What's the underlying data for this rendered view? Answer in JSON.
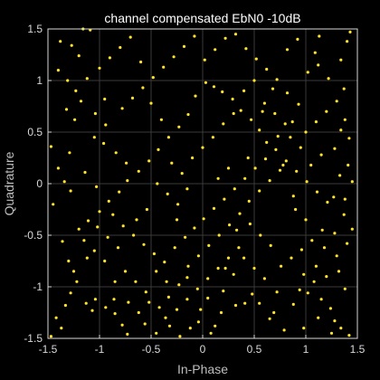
{
  "chart_data": {
    "type": "scatter",
    "title": "channel compensated EbN0 -10dB",
    "xlabel": "In-Phase",
    "ylabel": "Quadrature",
    "xlim": [
      -1.5,
      1.5
    ],
    "ylim": [
      -1.5,
      1.5
    ],
    "xticks": [
      "-1.5",
      "-1",
      "-0.5",
      "0",
      "0.5",
      "1",
      "1.5"
    ],
    "yticks": [
      "-1.5",
      "-1",
      "-0.5",
      "0",
      "0.5",
      "1",
      "1.5"
    ],
    "grid": true,
    "series": [
      {
        "marker": "dot",
        "points": [
          [
            -1.47,
            0.36
          ],
          [
            -1.34,
            0.02
          ],
          [
            -1.28,
            -0.07
          ],
          [
            -1.38,
            1.38
          ],
          [
            -1.27,
            1.34
          ],
          [
            -1.16,
            1.5
          ],
          [
            -1.09,
            1.49
          ],
          [
            -1.2,
            1.24
          ],
          [
            -1.23,
            0.9
          ],
          [
            -0.95,
            0.82
          ],
          [
            -1.24,
            0.62
          ],
          [
            -1.29,
            0.3
          ],
          [
            -1.36,
            -0.56
          ],
          [
            -1.3,
            -0.75
          ],
          [
            -1.28,
            -1.06
          ],
          [
            -1.37,
            -1.4
          ],
          [
            -1.13,
            -1.16
          ],
          [
            -1.07,
            -1.23
          ],
          [
            -1.04,
            -1.12
          ],
          [
            -0.94,
            -1.2
          ],
          [
            -0.86,
            -1.12
          ],
          [
            -0.85,
            -1.26
          ],
          [
            -0.78,
            -1.37
          ],
          [
            -0.73,
            -1.46
          ],
          [
            -0.56,
            -1.36
          ],
          [
            -0.45,
            -1.45
          ],
          [
            -0.36,
            -1.3
          ],
          [
            -0.33,
            -1.1
          ],
          [
            -0.23,
            -0.98
          ],
          [
            -0.15,
            -0.91
          ],
          [
            -0.04,
            -1.34
          ],
          [
            0.05,
            -1.11
          ],
          [
            0.12,
            -1.38
          ],
          [
            0.2,
            -1.04
          ],
          [
            0.22,
            -0.82
          ],
          [
            0.32,
            -1.18
          ],
          [
            0.41,
            -1.16
          ],
          [
            0.48,
            -1.07
          ],
          [
            0.55,
            -1.16
          ],
          [
            0.65,
            -1.31
          ],
          [
            0.69,
            -1.25
          ],
          [
            0.79,
            -1.42
          ],
          [
            0.88,
            -1.17
          ],
          [
            0.94,
            -1.03
          ],
          [
            1.02,
            -1.06
          ],
          [
            1.15,
            -1.12
          ],
          [
            1.24,
            -1.21
          ],
          [
            1.28,
            -1.33
          ],
          [
            1.34,
            -1.4
          ],
          [
            1.42,
            -1.47
          ],
          [
            1.38,
            -1.02
          ],
          [
            1.32,
            -0.85
          ],
          [
            1.4,
            -0.58
          ],
          [
            1.45,
            -0.44
          ],
          [
            1.37,
            -0.3
          ],
          [
            1.27,
            -0.13
          ],
          [
            1.33,
            0.08
          ],
          [
            1.41,
            0.18
          ],
          [
            1.28,
            0.34
          ],
          [
            1.34,
            0.52
          ],
          [
            1.42,
            0.44
          ],
          [
            1.37,
            0.92
          ],
          [
            1.34,
            1.2
          ],
          [
            1.4,
            1.38
          ],
          [
            1.43,
            1.47
          ],
          [
            1.13,
            1.43
          ],
          [
            1.09,
            1.27
          ],
          [
            1.02,
            1.08
          ],
          [
            0.93,
            0.77
          ],
          [
            0.82,
            0.88
          ],
          [
            0.87,
            0.6
          ],
          [
            0.73,
            0.46
          ],
          [
            0.62,
            0.4
          ],
          [
            0.55,
            0.52
          ],
          [
            0.47,
            0.62
          ],
          [
            0.37,
            0.71
          ],
          [
            0.29,
            0.82
          ],
          [
            0.19,
            0.89
          ],
          [
            0.11,
            0.94
          ],
          [
            0.03,
            0.98
          ],
          [
            -0.07,
            0.85
          ],
          [
            -0.14,
            0.67
          ],
          [
            -0.23,
            0.55
          ],
          [
            -0.33,
            0.45
          ],
          [
            -0.43,
            0.33
          ],
          [
            -0.52,
            0.22
          ],
          [
            -0.62,
            0.12
          ],
          [
            -0.73,
            0.03
          ],
          [
            -0.81,
            -0.08
          ],
          [
            -0.91,
            -0.17
          ],
          [
            -1.0,
            -0.27
          ],
          [
            -1.11,
            -0.36
          ],
          [
            -1.2,
            -0.44
          ],
          [
            -1.05,
            0.45
          ],
          [
            -0.96,
            0.39
          ],
          [
            -1.14,
            0.11
          ],
          [
            -1.03,
            -0.03
          ],
          [
            -0.87,
            -0.3
          ],
          [
            -0.77,
            -0.41
          ],
          [
            -0.67,
            -0.5
          ],
          [
            -0.57,
            -0.59
          ],
          [
            -0.47,
            -0.68
          ],
          [
            -0.37,
            -0.76
          ],
          [
            -0.27,
            -0.62
          ],
          [
            -0.17,
            -0.52
          ],
          [
            -0.08,
            -0.43
          ],
          [
            0.01,
            -0.34
          ],
          [
            0.11,
            -0.24
          ],
          [
            0.21,
            -0.15
          ],
          [
            0.31,
            -0.05
          ],
          [
            0.41,
            0.05
          ],
          [
            0.51,
            0.15
          ],
          [
            0.61,
            0.24
          ],
          [
            0.71,
            0.33
          ],
          [
            0.81,
            0.22
          ],
          [
            0.91,
            0.12
          ],
          [
            1.01,
            0.02
          ],
          [
            1.11,
            -0.08
          ],
          [
            1.21,
            -0.18
          ],
          [
            1.16,
            -0.45
          ],
          [
            1.06,
            -0.55
          ],
          [
            0.96,
            -0.64
          ],
          [
            0.86,
            -0.72
          ],
          [
            0.76,
            -0.8
          ],
          [
            0.66,
            -0.6
          ],
          [
            0.56,
            -0.5
          ],
          [
            0.46,
            -0.39
          ],
          [
            0.36,
            -0.29
          ],
          [
            0.26,
            -0.4
          ],
          [
            0.16,
            -0.5
          ],
          [
            0.06,
            -0.6
          ],
          [
            -0.04,
            -0.7
          ],
          [
            -0.14,
            -0.8
          ],
          [
            -0.24,
            -0.2
          ],
          [
            -0.34,
            -0.1
          ],
          [
            -0.44,
            0.0
          ],
          [
            -0.54,
            -0.25
          ],
          [
            -0.64,
            -0.35
          ],
          [
            -0.74,
            0.2
          ],
          [
            -0.84,
            0.3
          ],
          [
            -0.94,
            0.57
          ],
          [
            -1.04,
            0.68
          ],
          [
            -0.78,
            0.73
          ],
          [
            -0.68,
            0.83
          ],
          [
            -0.58,
            0.93
          ],
          [
            -0.48,
            1.03
          ],
          [
            -0.38,
            1.13
          ],
          [
            -0.28,
            1.23
          ],
          [
            -0.18,
            1.33
          ],
          [
            -0.08,
            1.43
          ],
          [
            0.02,
            1.2
          ],
          [
            0.12,
            1.3
          ],
          [
            0.22,
            1.41
          ],
          [
            0.32,
            1.45
          ],
          [
            0.42,
            1.31
          ],
          [
            0.52,
            1.21
          ],
          [
            0.62,
            1.11
          ],
          [
            0.72,
            1.01
          ],
          [
            0.82,
            1.3
          ],
          [
            0.92,
            1.4
          ],
          [
            1.0,
            0.5
          ],
          [
            1.1,
            0.6
          ],
          [
            1.2,
            0.7
          ],
          [
            1.15,
            0.28
          ],
          [
            1.05,
            0.18
          ],
          [
            0.95,
            0.35
          ],
          [
            0.85,
            0.45
          ],
          [
            0.75,
            0.13
          ],
          [
            0.65,
            0.03
          ],
          [
            0.55,
            -0.07
          ],
          [
            0.45,
            -0.17
          ],
          [
            0.35,
            -0.62
          ],
          [
            0.25,
            -0.72
          ],
          [
            0.15,
            -0.82
          ],
          [
            0.05,
            -0.92
          ],
          [
            -0.05,
            -1.02
          ],
          [
            -0.15,
            -1.12
          ],
          [
            -0.25,
            -1.22
          ],
          [
            -0.35,
            -0.95
          ],
          [
            -0.45,
            -0.85
          ],
          [
            -0.55,
            -1.05
          ],
          [
            -0.65,
            -0.95
          ],
          [
            -0.75,
            -0.85
          ],
          [
            -0.85,
            -0.95
          ],
          [
            -0.95,
            -0.75
          ],
          [
            -1.05,
            -0.65
          ],
          [
            -1.15,
            -0.55
          ],
          [
            -1.25,
            -0.85
          ],
          [
            -1.45,
            -0.2
          ],
          [
            -1.4,
            0.15
          ],
          [
            -1.32,
            0.72
          ],
          [
            -1.18,
            0.8
          ],
          [
            -1.12,
            1.02
          ],
          [
            -1.0,
            1.12
          ],
          [
            -0.9,
            1.22
          ],
          [
            -0.8,
            1.32
          ],
          [
            -0.7,
            1.42
          ],
          [
            -0.6,
            1.18
          ],
          [
            -0.5,
            0.78
          ],
          [
            -0.4,
            0.62
          ],
          [
            -0.3,
            0.2
          ],
          [
            -0.2,
            0.1
          ],
          [
            -0.1,
            0.25
          ],
          [
            0.0,
            0.35
          ],
          [
            0.1,
            0.45
          ],
          [
            0.2,
            0.58
          ],
          [
            0.3,
            0.68
          ],
          [
            0.4,
            0.9
          ],
          [
            0.5,
            1.0
          ],
          [
            0.6,
            0.78
          ],
          [
            0.7,
            0.68
          ],
          [
            0.8,
            0.58
          ],
          [
            0.9,
            -0.25
          ],
          [
            1.0,
            -0.35
          ],
          [
            1.1,
            -0.8
          ],
          [
            1.2,
            -0.9
          ],
          [
            1.3,
            -0.7
          ],
          [
            1.25,
            -1.45
          ],
          [
            1.12,
            -1.3
          ],
          [
            0.98,
            -1.4
          ],
          [
            0.72,
            -1.05
          ],
          [
            0.6,
            -0.92
          ],
          [
            0.5,
            -0.82
          ],
          [
            0.4,
            -0.72
          ],
          [
            0.3,
            -0.88
          ],
          [
            0.18,
            -1.25
          ],
          [
            0.08,
            -1.45
          ],
          [
            -0.02,
            -1.22
          ],
          [
            -0.12,
            -1.4
          ],
          [
            -0.22,
            -1.48
          ],
          [
            -0.32,
            -1.38
          ],
          [
            -0.42,
            -1.2
          ],
          [
            -0.52,
            -1.15
          ],
          [
            -0.62,
            -1.25
          ],
          [
            -0.72,
            -1.15
          ],
          [
            -0.82,
            -0.62
          ],
          [
            -0.92,
            -0.52
          ],
          [
            -1.02,
            -0.42
          ],
          [
            -1.12,
            -0.72
          ],
          [
            -1.22,
            -0.95
          ],
          [
            -1.33,
            -1.18
          ],
          [
            -1.42,
            -1.3
          ],
          [
            -1.47,
            -1.48
          ],
          [
            -1.4,
            1.1
          ],
          [
            -1.31,
            1.0
          ],
          [
            0.15,
            0.05
          ],
          [
            0.25,
            0.15
          ],
          [
            -0.15,
            -0.05
          ],
          [
            -0.25,
            -0.35
          ],
          [
            0.33,
            -0.45
          ],
          [
            0.44,
            0.25
          ],
          [
            0.58,
            0.7
          ],
          [
            0.68,
            0.92
          ],
          [
            0.78,
            0.18
          ],
          [
            0.88,
            -0.12
          ],
          [
            0.98,
            -0.88
          ],
          [
            1.08,
            -0.95
          ],
          [
            1.18,
            -0.62
          ],
          [
            1.28,
            -0.48
          ],
          [
            1.38,
            -0.15
          ],
          [
            1.45,
            0.02
          ],
          [
            1.38,
            0.62
          ],
          [
            1.3,
            0.8
          ],
          [
            1.22,
            1.02
          ],
          [
            1.12,
            1.15
          ]
        ]
      }
    ]
  },
  "colors": {
    "background": "#000000",
    "axes_background": "#000000",
    "axis_line": "#d9d9d9",
    "grid": "#3a3a3a",
    "marker": "#ffe32a",
    "title": "#ffffff",
    "label": "#bfbfbf"
  }
}
